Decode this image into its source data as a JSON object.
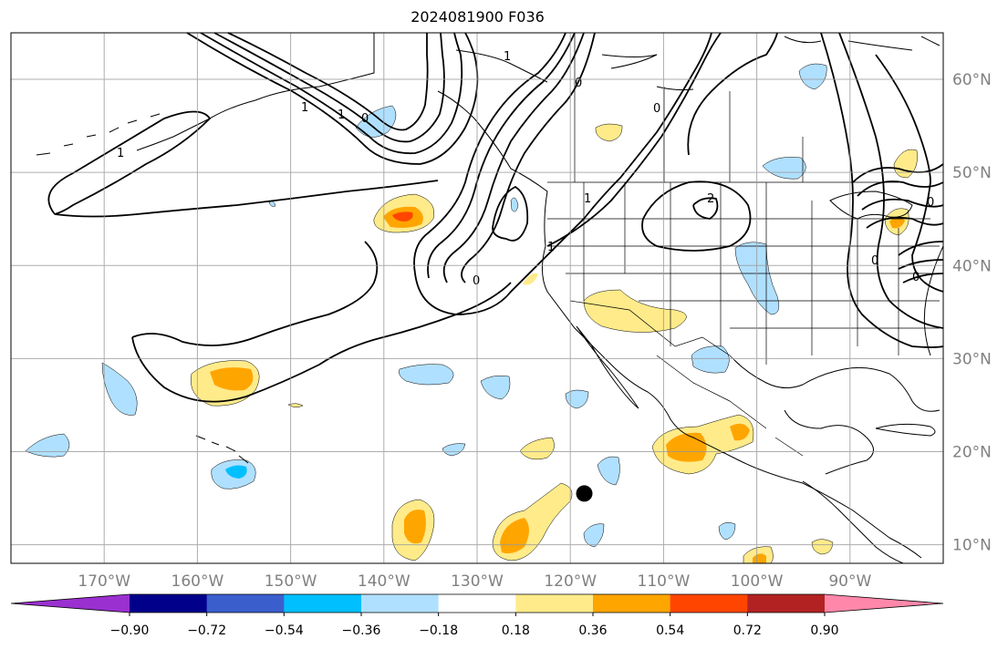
{
  "title": "2024081900 F036",
  "map": {
    "lon_range": [
      -180,
      -80
    ],
    "lat_range": [
      8,
      65
    ],
    "lon_ticks": [
      "170°W",
      "160°W",
      "150°W",
      "140°W",
      "130°W",
      "120°W",
      "110°W",
      "100°W",
      "90°W"
    ],
    "lat_ticks": [
      "60°N",
      "50°N",
      "40°N",
      "30°N",
      "20°N",
      "10°N"
    ],
    "contour_labels": [
      "1",
      "1",
      "1",
      "0",
      "1",
      "2",
      "1",
      "1",
      "0",
      "0",
      "0",
      "0",
      "0",
      "0"
    ],
    "marker": {
      "lon": -118.5,
      "lat": 15.5,
      "color": "#000000"
    }
  },
  "colorbar": {
    "levels": [
      "−0.90",
      "−0.72",
      "−0.54",
      "−0.36",
      "−0.18",
      "0.18",
      "0.36",
      "0.54",
      "0.72",
      "0.90"
    ],
    "colors": [
      "#9b30d0",
      "#00008b",
      "#3a5fcd",
      "#00bfff",
      "#b0e0ff",
      "#ffffff",
      "#ffeb8a",
      "#ffa500",
      "#ff4500",
      "#b22222",
      "#ff88aa"
    ]
  },
  "colors": {
    "positive_light": "#ffeb8a",
    "positive_mid": "#ffa500",
    "positive_strong": "#ff4500",
    "negative_light": "#b0e0ff",
    "negative_mid": "#00bfff",
    "grid": "#999999"
  }
}
